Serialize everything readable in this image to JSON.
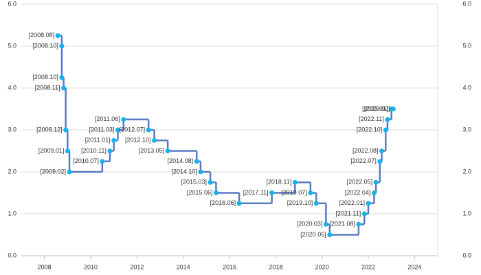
{
  "chart_data": {
    "type": "step",
    "xlim": [
      2007,
      2025
    ],
    "xticks": [
      2008,
      2010,
      2012,
      2014,
      2016,
      2018,
      2020,
      2022,
      2024
    ],
    "ylim": [
      0,
      6
    ],
    "yticks": [
      {
        "value": 0,
        "label": "0.0"
      },
      {
        "value": 1,
        "label": "1.0"
      },
      {
        "value": 2,
        "label": "2.0"
      },
      {
        "value": 3,
        "label": "3.0"
      },
      {
        "value": 4,
        "label": "4.0"
      },
      {
        "value": 5,
        "label": "5.0"
      },
      {
        "value": 6,
        "label": "6.0"
      }
    ],
    "y2lim": [
      0,
      6
    ],
    "y2ticks": [
      {
        "value": 0,
        "label": "0.0"
      },
      {
        "value": 1,
        "label": "1.0"
      },
      {
        "value": 2,
        "label": "2.0"
      },
      {
        "value": 3,
        "label": "3.0"
      },
      {
        "value": 4,
        "label": "4.0"
      },
      {
        "value": 5,
        "label": "5.0"
      },
      {
        "value": 6,
        "label": "6.0"
      }
    ],
    "grid": true,
    "series": [
      {
        "color": "#5b78c2",
        "marker_color": "#16b2f0",
        "x": [
          2008.58,
          2008.75,
          2008.75,
          2008.83,
          2008.92,
          2009.0,
          2009.08,
          2010.5,
          2010.83,
          2011.0,
          2011.17,
          2011.42,
          2012.5,
          2012.75,
          2013.33,
          2014.58,
          2014.75,
          2015.17,
          2015.42,
          2016.42,
          2017.83,
          2018.83,
          2019.5,
          2019.75,
          2020.17,
          2020.33,
          2021.58,
          2021.83,
          2022.0,
          2022.25,
          2022.33,
          2022.5,
          2022.58,
          2022.75,
          2022.83,
          2023.0,
          2023.08
        ],
        "values": [
          5.25,
          5.0,
          4.25,
          4.0,
          3.0,
          2.5,
          2.0,
          2.25,
          2.5,
          2.75,
          3.0,
          3.25,
          3.0,
          2.75,
          2.5,
          2.25,
          2.0,
          1.75,
          1.5,
          1.25,
          1.5,
          1.75,
          1.5,
          1.25,
          0.75,
          0.5,
          0.75,
          1.0,
          1.25,
          1.5,
          1.75,
          2.25,
          2.5,
          3.0,
          3.25,
          3.5,
          3.5
        ],
        "point_labels": [
          "[2008.08]",
          "[2008.10]",
          "[2008.10]",
          "[2008.11]",
          "[2008.12]",
          "[2009.01]",
          "[2009.02]",
          "[2010.07]",
          "[2010.11]",
          "[2011.01]",
          "[2011.03]",
          "[2011.06]",
          "[2012.07]",
          "[2012.10]",
          "[2013.05]",
          "[2014.08]",
          "[2014.10]",
          "[2015.03]",
          "[2015.06]",
          "[2016.06]",
          "[2017.11]",
          "[2018.11]",
          "[2019.07]",
          "[2019.10]",
          "[2020.03]",
          "[2020.05]",
          "[2021.08]",
          "[2021.11]",
          "[2022.01]",
          "[2022.04]",
          "[2022.05]",
          "[2022.07]",
          "[2022.08]",
          "[2022.10]",
          "[2022.11]",
          "[2023.01]",
          "[2023.02]"
        ]
      }
    ]
  }
}
